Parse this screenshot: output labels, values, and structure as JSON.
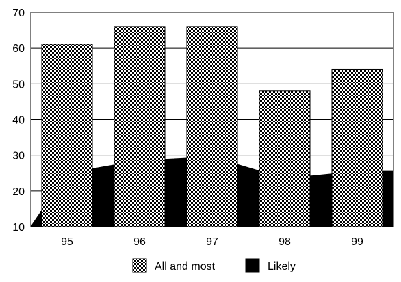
{
  "chart_data": {
    "type": "bar",
    "categories": [
      "95",
      "96",
      "97",
      "98",
      "99"
    ],
    "series": [
      {
        "name": "All and most",
        "render": "bar",
        "pattern": "checker-gray",
        "values": [
          61,
          66,
          66,
          48,
          54
        ]
      },
      {
        "name": "Likely",
        "render": "area",
        "color": "#000000",
        "values": [
          25,
          28.5,
          29.5,
          23.5,
          25.5
        ]
      }
    ],
    "title": "",
    "xlabel": "",
    "ylabel": "",
    "ylim": [
      10,
      70
    ],
    "yticks": [
      "10",
      "20",
      "30",
      "40",
      "50",
      "60",
      "70"
    ],
    "grid": true,
    "legend": "bottom-center"
  }
}
